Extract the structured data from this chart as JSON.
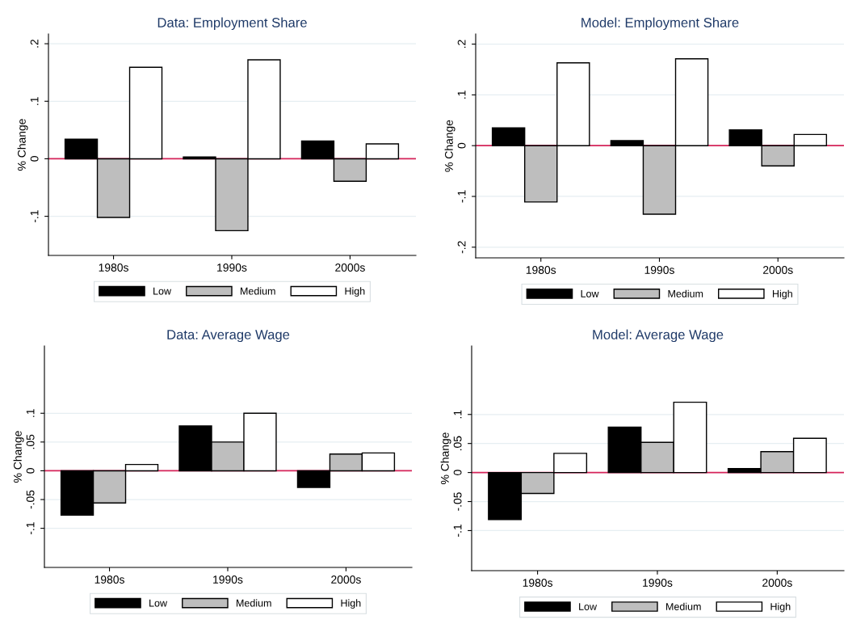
{
  "chart_data": [
    {
      "type": "bar",
      "title": "Data: Employment Share",
      "ylabel": "% Change",
      "categories": [
        "1980s",
        "1990s",
        "2000s"
      ],
      "series": [
        {
          "name": "Low",
          "color": "#000000",
          "values": [
            0.034,
            0.003,
            0.031
          ]
        },
        {
          "name": "Medium",
          "color": "#bebebe",
          "values": [
            -0.102,
            -0.125,
            -0.039
          ]
        },
        {
          "name": "High",
          "color": "#ffffff",
          "values": [
            0.159,
            0.172,
            0.026
          ]
        }
      ],
      "ylim": [
        -0.168,
        0.217
      ],
      "yticks": [
        {
          "value": -0.1,
          "label": "-.1"
        },
        0,
        {
          "value": 0.1,
          "label": ".1"
        },
        {
          "value": 0.2,
          "label": ".2"
        }
      ],
      "grid": "y",
      "legend": "bottom",
      "ref_lines": [
        {
          "axis": "y",
          "value": 0,
          "label": null,
          "color": "#d6245a"
        }
      ]
    },
    {
      "type": "bar",
      "title": "Model: Employment Share",
      "ylabel": "% Change",
      "categories": [
        "1980s",
        "1990s",
        "2000s"
      ],
      "series": [
        {
          "name": "Low",
          "color": "#000000",
          "values": [
            0.035,
            0.01,
            0.031
          ]
        },
        {
          "name": "Medium",
          "color": "#bebebe",
          "values": [
            -0.111,
            -0.135,
            -0.04
          ]
        },
        {
          "name": "High",
          "color": "#ffffff",
          "values": [
            0.163,
            0.171,
            0.022
          ]
        }
      ],
      "ylim": [
        -0.221,
        0.22
      ],
      "yticks": [
        {
          "value": -0.2,
          "label": "-.2"
        },
        {
          "value": -0.1,
          "label": "-.1"
        },
        0,
        {
          "value": 0.1,
          "label": ".1"
        },
        {
          "value": 0.2,
          "label": ".2"
        }
      ],
      "grid": "y",
      "legend": "bottom",
      "ref_lines": [
        {
          "axis": "y",
          "value": 0,
          "label": null,
          "color": "#d6245a"
        }
      ]
    },
    {
      "type": "bar",
      "title": "Data: Average Wage",
      "ylabel": "% Change",
      "categories": [
        "1980s",
        "1990s",
        "2000s"
      ],
      "series": [
        {
          "name": "Low",
          "color": "#000000",
          "values": [
            -0.077,
            0.078,
            -0.029
          ]
        },
        {
          "name": "Medium",
          "color": "#bebebe",
          "values": [
            -0.056,
            0.05,
            0.029
          ]
        },
        {
          "name": "High",
          "color": "#ffffff",
          "values": [
            0.011,
            0.1,
            0.031
          ]
        }
      ],
      "ylim": [
        -0.168,
        0.217
      ],
      "yticks": [
        {
          "value": -0.1,
          "label": "-.1"
        },
        {
          "value": -0.05,
          "label": "-.05"
        },
        0,
        {
          "value": 0.05,
          "label": ".05"
        },
        {
          "value": 0.1,
          "label": ".1"
        }
      ],
      "grid": "y",
      "legend": "bottom",
      "ref_lines": [
        {
          "axis": "y",
          "value": 0,
          "label": null,
          "color": "#d6245a"
        }
      ]
    },
    {
      "type": "bar",
      "title": "Model: Average Wage",
      "ylabel": "% Change",
      "categories": [
        "1980s",
        "1990s",
        "2000s"
      ],
      "series": [
        {
          "name": "Low",
          "color": "#000000",
          "values": [
            -0.081,
            0.078,
            0.007
          ]
        },
        {
          "name": "Medium",
          "color": "#bebebe",
          "values": [
            -0.036,
            0.052,
            0.036
          ]
        },
        {
          "name": "High",
          "color": "#ffffff",
          "values": [
            0.033,
            0.121,
            0.059
          ]
        }
      ],
      "ylim": [
        -0.169,
        0.218
      ],
      "yticks": [
        {
          "value": -0.1,
          "label": "-.1"
        },
        {
          "value": -0.05,
          "label": "-.05"
        },
        0,
        {
          "value": 0.05,
          "label": ".05"
        },
        {
          "value": 0.1,
          "label": ".1"
        }
      ],
      "grid": "y",
      "legend": "bottom",
      "ref_lines": [
        {
          "axis": "y",
          "value": 0,
          "label": null,
          "color": "#d6245a"
        }
      ]
    }
  ]
}
